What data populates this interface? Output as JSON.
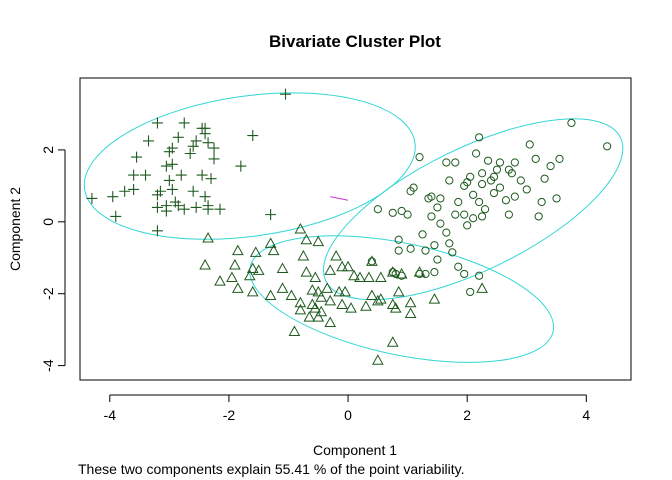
{
  "chart_data": {
    "type": "scatter",
    "title": "Bivariate Cluster Plot",
    "xlabel": "Component 1",
    "ylabel": "Component 2",
    "caption": "These two components explain 55.41 % of the point variability.",
    "xlim": [
      -4.5,
      4.75
    ],
    "ylim": [
      -4.4,
      4.0
    ],
    "x_ticks": [
      -4,
      -2,
      0,
      2,
      4
    ],
    "y_ticks": [
      -4,
      -2,
      0,
      2
    ],
    "point_color": "#1f5a1f",
    "ellipse_color": "#33d6d6",
    "link_color": "#cc33cc",
    "ellipses": [
      {
        "cx": -1.65,
        "cy": 1.55,
        "rx": 2.8,
        "ry": 1.95,
        "angle": 8
      },
      {
        "cx": 2.1,
        "cy": 0.35,
        "rx": 2.75,
        "ry": 1.7,
        "angle": 26
      },
      {
        "cx": 0.9,
        "cy": -2.15,
        "rx": 2.6,
        "ry": 1.55,
        "angle": -12
      }
    ],
    "links": [
      {
        "x1": -0.3,
        "y1": 0.7,
        "x2": 0.0,
        "y2": 0.6
      }
    ],
    "series": [
      {
        "marker": "plus",
        "points": [
          [
            -1.05,
            3.55
          ],
          [
            -3.2,
            2.75
          ],
          [
            -2.75,
            2.75
          ],
          [
            -2.45,
            2.6
          ],
          [
            -2.4,
            2.45
          ],
          [
            -2.4,
            2.6
          ],
          [
            -1.6,
            2.4
          ],
          [
            -3.35,
            2.25
          ],
          [
            -2.85,
            2.35
          ],
          [
            -2.55,
            2.25
          ],
          [
            -2.35,
            2.2
          ],
          [
            -2.95,
            2.05
          ],
          [
            -3.0,
            1.95
          ],
          [
            -2.6,
            2.1
          ],
          [
            -2.25,
            2.05
          ],
          [
            -2.65,
            1.9
          ],
          [
            -3.55,
            1.8
          ],
          [
            -2.25,
            1.75
          ],
          [
            -2.95,
            1.6
          ],
          [
            -3.05,
            1.55
          ],
          [
            -1.8,
            1.55
          ],
          [
            -3.4,
            1.3
          ],
          [
            -3.6,
            1.3
          ],
          [
            -2.8,
            1.3
          ],
          [
            -2.45,
            1.3
          ],
          [
            -3.0,
            1.15
          ],
          [
            -2.3,
            1.2
          ],
          [
            -3.6,
            0.9
          ],
          [
            -3.15,
            0.85
          ],
          [
            -3.75,
            0.85
          ],
          [
            -2.95,
            0.9
          ],
          [
            -2.6,
            0.85
          ],
          [
            -4.3,
            0.65
          ],
          [
            -3.95,
            0.7
          ],
          [
            -3.2,
            0.75
          ],
          [
            -2.4,
            0.7
          ],
          [
            -2.9,
            0.55
          ],
          [
            -3.05,
            0.45
          ],
          [
            -3.2,
            0.4
          ],
          [
            -2.85,
            0.45
          ],
          [
            -3.05,
            0.3
          ],
          [
            -2.75,
            0.35
          ],
          [
            -2.55,
            0.4
          ],
          [
            -2.35,
            0.35
          ],
          [
            -2.15,
            0.35
          ],
          [
            -2.35,
            0.45
          ],
          [
            -3.9,
            0.15
          ],
          [
            -1.3,
            0.2
          ],
          [
            -3.2,
            -0.25
          ]
        ]
      },
      {
        "marker": "circle",
        "points": [
          [
            3.75,
            2.75
          ],
          [
            4.35,
            2.1
          ],
          [
            3.05,
            2.15
          ],
          [
            2.2,
            2.35
          ],
          [
            1.65,
            1.65
          ],
          [
            1.8,
            1.65
          ],
          [
            2.35,
            1.7
          ],
          [
            2.15,
            1.9
          ],
          [
            2.55,
            1.65
          ],
          [
            2.5,
            1.45
          ],
          [
            2.25,
            1.35
          ],
          [
            2.05,
            1.25
          ],
          [
            1.2,
            1.8
          ],
          [
            3.15,
            1.75
          ],
          [
            3.55,
            1.75
          ],
          [
            2.8,
            1.65
          ],
          [
            3.4,
            1.55
          ],
          [
            2.7,
            1.45
          ],
          [
            2.75,
            1.35
          ],
          [
            2.45,
            1.25
          ],
          [
            2.4,
            1.15
          ],
          [
            2.0,
            1.1
          ],
          [
            1.95,
            1.0
          ],
          [
            2.25,
            1.05
          ],
          [
            1.7,
            1.15
          ],
          [
            3.3,
            1.2
          ],
          [
            3.0,
            0.9
          ],
          [
            2.9,
            1.15
          ],
          [
            2.55,
            0.95
          ],
          [
            2.45,
            0.8
          ],
          [
            2.8,
            0.7
          ],
          [
            2.1,
            0.75
          ],
          [
            1.55,
            0.65
          ],
          [
            1.4,
            0.7
          ],
          [
            1.1,
            0.95
          ],
          [
            1.05,
            0.85
          ],
          [
            2.65,
            0.6
          ],
          [
            2.2,
            0.55
          ],
          [
            3.25,
            0.55
          ],
          [
            3.5,
            0.65
          ],
          [
            1.35,
            0.65
          ],
          [
            1.85,
            0.55
          ],
          [
            2.3,
            0.35
          ],
          [
            1.5,
            0.4
          ],
          [
            0.9,
            0.3
          ],
          [
            0.75,
            0.25
          ],
          [
            2.25,
            0.15
          ],
          [
            2.1,
            0.1
          ],
          [
            1.95,
            0.2
          ],
          [
            1.8,
            0.2
          ],
          [
            1.0,
            0.2
          ],
          [
            1.4,
            0.15
          ],
          [
            2.7,
            0.2
          ],
          [
            3.2,
            0.15
          ],
          [
            0.5,
            0.35
          ],
          [
            1.55,
            -0.05
          ],
          [
            2.0,
            -0.1
          ],
          [
            1.65,
            -0.3
          ],
          [
            1.25,
            -0.35
          ],
          [
            0.85,
            -0.5
          ],
          [
            1.45,
            -0.65
          ],
          [
            1.7,
            -0.6
          ],
          [
            1.75,
            -0.85
          ],
          [
            1.3,
            -0.8
          ],
          [
            1.05,
            -0.75
          ],
          [
            0.85,
            -0.8
          ],
          [
            1.5,
            -1.05
          ],
          [
            1.85,
            -1.25
          ],
          [
            1.95,
            -1.45
          ],
          [
            2.2,
            -1.5
          ],
          [
            1.45,
            -1.4
          ],
          [
            1.3,
            -1.45
          ],
          [
            0.8,
            -1.45
          ],
          [
            0.9,
            -1.5
          ],
          [
            0.75,
            -1.4
          ],
          [
            0.4,
            -1.1
          ],
          [
            2.05,
            -1.95
          ],
          [
            1.2,
            -1.45
          ]
        ]
      },
      {
        "marker": "triangle",
        "points": [
          [
            -0.8,
            -0.2
          ],
          [
            -2.35,
            -0.45
          ],
          [
            -0.5,
            -0.55
          ],
          [
            -0.7,
            -0.5
          ],
          [
            -1.3,
            -0.6
          ],
          [
            -1.85,
            -0.8
          ],
          [
            -1.55,
            -0.85
          ],
          [
            -1.25,
            -0.8
          ],
          [
            -0.75,
            -0.95
          ],
          [
            -0.2,
            -0.95
          ],
          [
            -0.1,
            -1.25
          ],
          [
            0.0,
            -1.25
          ],
          [
            0.4,
            -1.1
          ],
          [
            0.75,
            -1.4
          ],
          [
            0.9,
            -1.45
          ],
          [
            -2.4,
            -1.2
          ],
          [
            -1.9,
            -1.2
          ],
          [
            -1.6,
            -1.3
          ],
          [
            -1.5,
            -1.35
          ],
          [
            -1.65,
            -1.5
          ],
          [
            -1.1,
            -1.3
          ],
          [
            -0.7,
            -1.4
          ],
          [
            -0.55,
            -1.55
          ],
          [
            -0.3,
            -1.35
          ],
          [
            0.1,
            -1.5
          ],
          [
            0.2,
            -1.55
          ],
          [
            0.35,
            -1.55
          ],
          [
            0.55,
            -1.55
          ],
          [
            1.2,
            -1.4
          ],
          [
            -1.95,
            -1.55
          ],
          [
            -2.15,
            -1.65
          ],
          [
            -1.85,
            -1.85
          ],
          [
            -1.6,
            -1.95
          ],
          [
            -1.1,
            -1.85
          ],
          [
            -0.95,
            -2.05
          ],
          [
            -0.6,
            -1.9
          ],
          [
            -0.5,
            -1.95
          ],
          [
            -0.45,
            -2.1
          ],
          [
            -0.35,
            -1.85
          ],
          [
            -0.15,
            -1.95
          ],
          [
            -0.05,
            -1.95
          ],
          [
            0.4,
            -2.05
          ],
          [
            0.55,
            -2.15
          ],
          [
            0.5,
            -2.2
          ],
          [
            0.85,
            -1.95
          ],
          [
            1.45,
            -2.15
          ],
          [
            2.25,
            -1.85
          ],
          [
            -1.3,
            -2.05
          ],
          [
            -0.8,
            -2.25
          ],
          [
            -0.6,
            -2.3
          ],
          [
            -0.55,
            -2.4
          ],
          [
            -0.45,
            -2.5
          ],
          [
            -0.3,
            -2.2
          ],
          [
            -0.1,
            -2.3
          ],
          [
            0.05,
            -2.4
          ],
          [
            0.3,
            -2.35
          ],
          [
            0.75,
            -2.3
          ],
          [
            0.8,
            -2.4
          ],
          [
            1.05,
            -2.25
          ],
          [
            1.05,
            -2.55
          ],
          [
            -0.8,
            -2.45
          ],
          [
            -0.65,
            -2.65
          ],
          [
            -0.5,
            -2.65
          ],
          [
            -0.3,
            -2.8
          ],
          [
            -0.9,
            -3.05
          ],
          [
            0.75,
            -3.35
          ],
          [
            0.5,
            -3.85
          ]
        ]
      }
    ]
  }
}
